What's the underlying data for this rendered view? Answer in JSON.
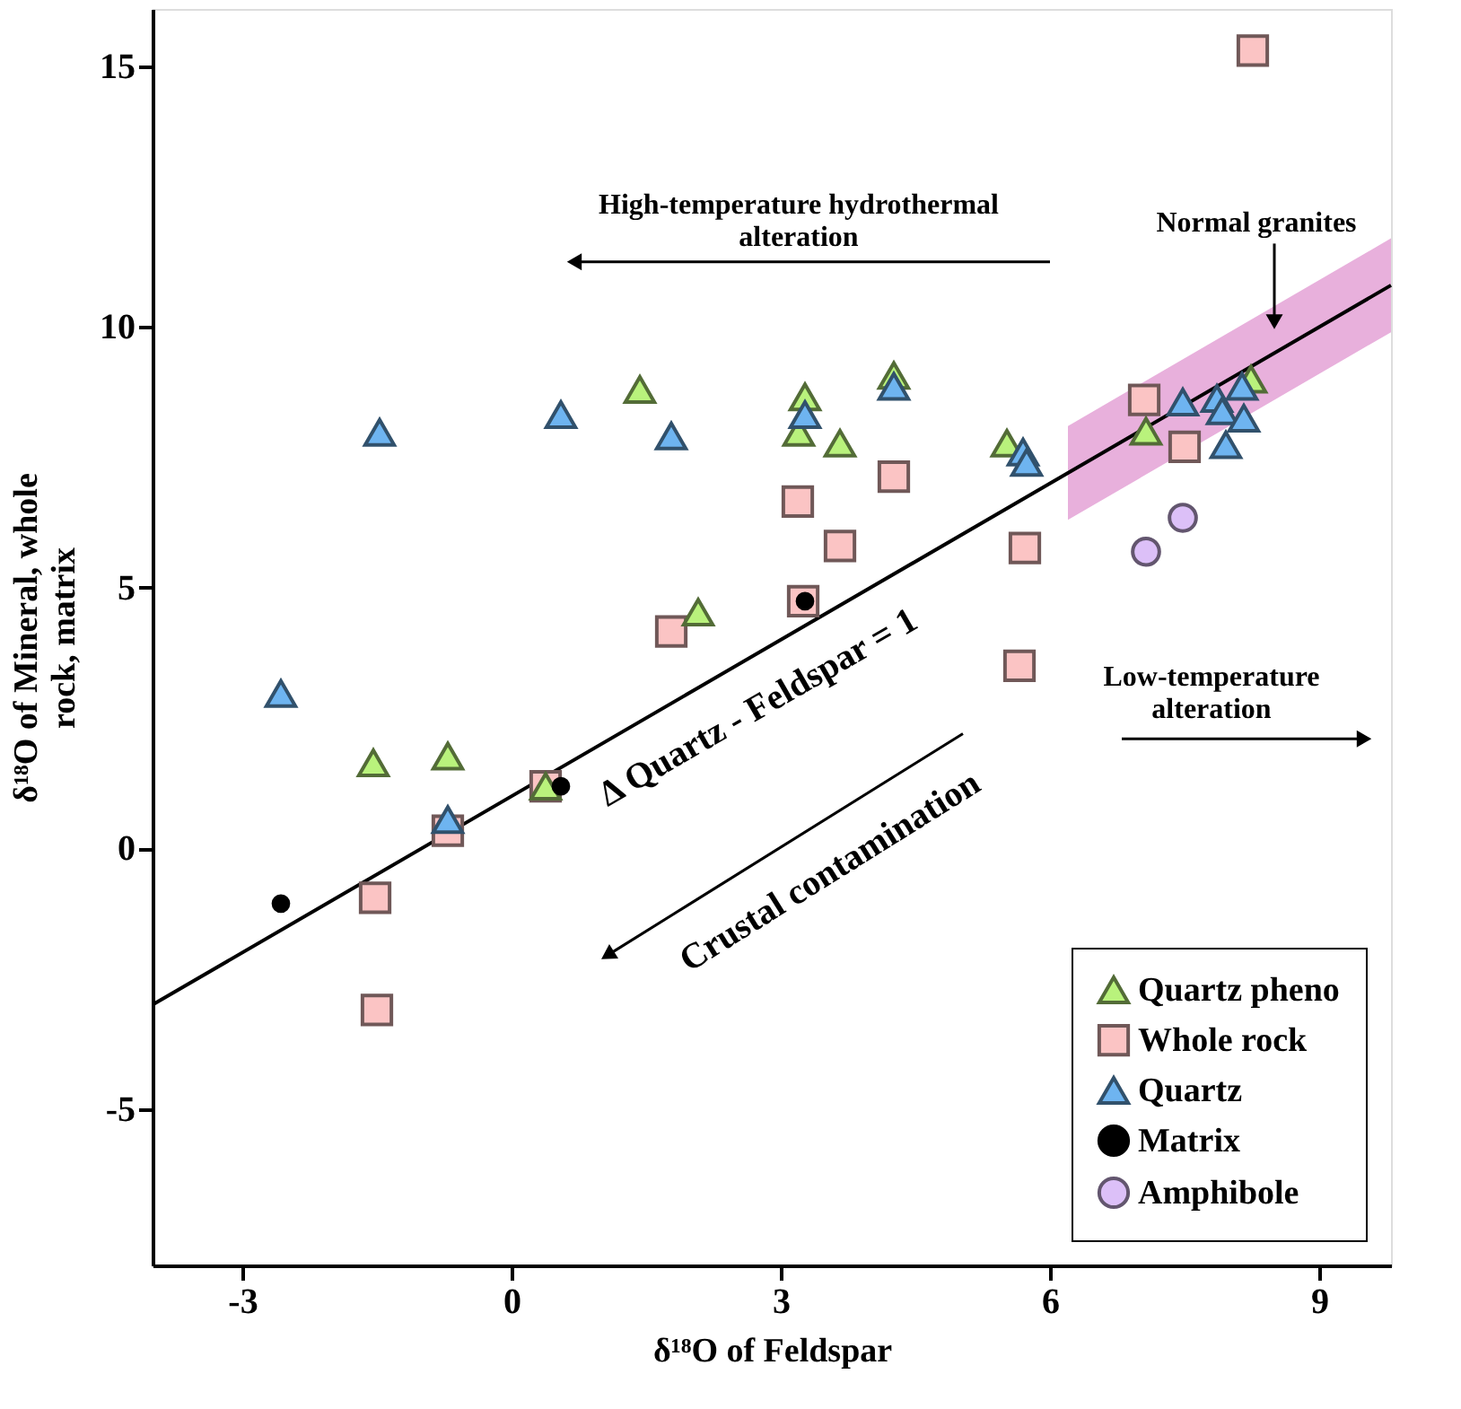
{
  "chart_data": {
    "type": "scatter",
    "xlabel": "δ¹⁸O of Feldspar",
    "ylabel": "δ¹⁸O of Mineral, whole rock, matrix",
    "xlim": [
      -4,
      9.8
    ],
    "ylim": [
      -8,
      16.1
    ],
    "xticks": [
      -3,
      0,
      3,
      6,
      9
    ],
    "yticks": [
      -5,
      0,
      5,
      10,
      15
    ],
    "grid": false,
    "legend": "bottom right",
    "series": [
      {
        "type": "line",
        "color": "#000000",
        "x": [
          -4,
          6.2,
          9.8
        ],
        "values": [
          -3,
          7.2,
          10.8
        ],
        "lower": [
          null,
          6.3,
          9.9
        ],
        "upper": [
          null,
          8.1,
          11.7
        ],
        "line_style": "solid"
      },
      {
        "name": "Quartz pheno",
        "color": "#b9f27c",
        "marker": "triangle",
        "x": [
          1.43,
          -1.54,
          -0.71,
          0.38,
          2.08,
          3.2,
          3.27,
          3.66,
          4.26,
          5.52,
          7.07,
          8.24
        ],
        "values": [
          8.8,
          1.64,
          1.77,
          1.19,
          4.53,
          7.98,
          8.66,
          7.77,
          9.07,
          7.77,
          8.0,
          9.0
        ]
      },
      {
        "name": "Whole rock",
        "color": "#fbc4c4",
        "marker": "square",
        "x": [
          8.26,
          7.05,
          7.5,
          4.26,
          3.66,
          3.19,
          3.25,
          1.78,
          5.72,
          5.66,
          0.38,
          -0.71,
          -1.52,
          -1.5
        ],
        "values": [
          15.3,
          8.6,
          7.7,
          7.13,
          5.8,
          6.65,
          4.74,
          4.16,
          5.76,
          3.5,
          1.19,
          0.34,
          -0.95,
          -3.1
        ]
      },
      {
        "name": "Quartz",
        "color": "#6eb4f0",
        "marker": "triangle",
        "x": [
          -1.47,
          -2.57,
          0.55,
          1.78,
          3.27,
          4.26,
          -0.71,
          5.7,
          5.74,
          7.48,
          7.86,
          7.92,
          8.16,
          8.14,
          7.96
        ],
        "values": [
          7.98,
          2.97,
          8.32,
          7.91,
          8.32,
          8.86,
          0.55,
          7.6,
          7.4,
          8.56,
          8.63,
          8.39,
          8.25,
          8.86,
          7.74
        ]
      },
      {
        "name": "Matrix",
        "color": "#000000",
        "marker": "circle",
        "x": [
          -2.57,
          0.55,
          3.27
        ],
        "values": [
          -1.06,
          1.19,
          4.74
        ]
      },
      {
        "name": "Amphibole",
        "color": "#dcc0f8",
        "marker": "circle",
        "x": [
          7.07,
          7.48
        ],
        "values": [
          5.69,
          6.34
        ]
      }
    ],
    "annotations": [
      "High-temperature hydrothermal\nalteration",
      "Normal granites",
      "Δ Quartz - Feldspar = 1",
      "Crustal contamination",
      "Low-temperature\nalteration"
    ]
  }
}
